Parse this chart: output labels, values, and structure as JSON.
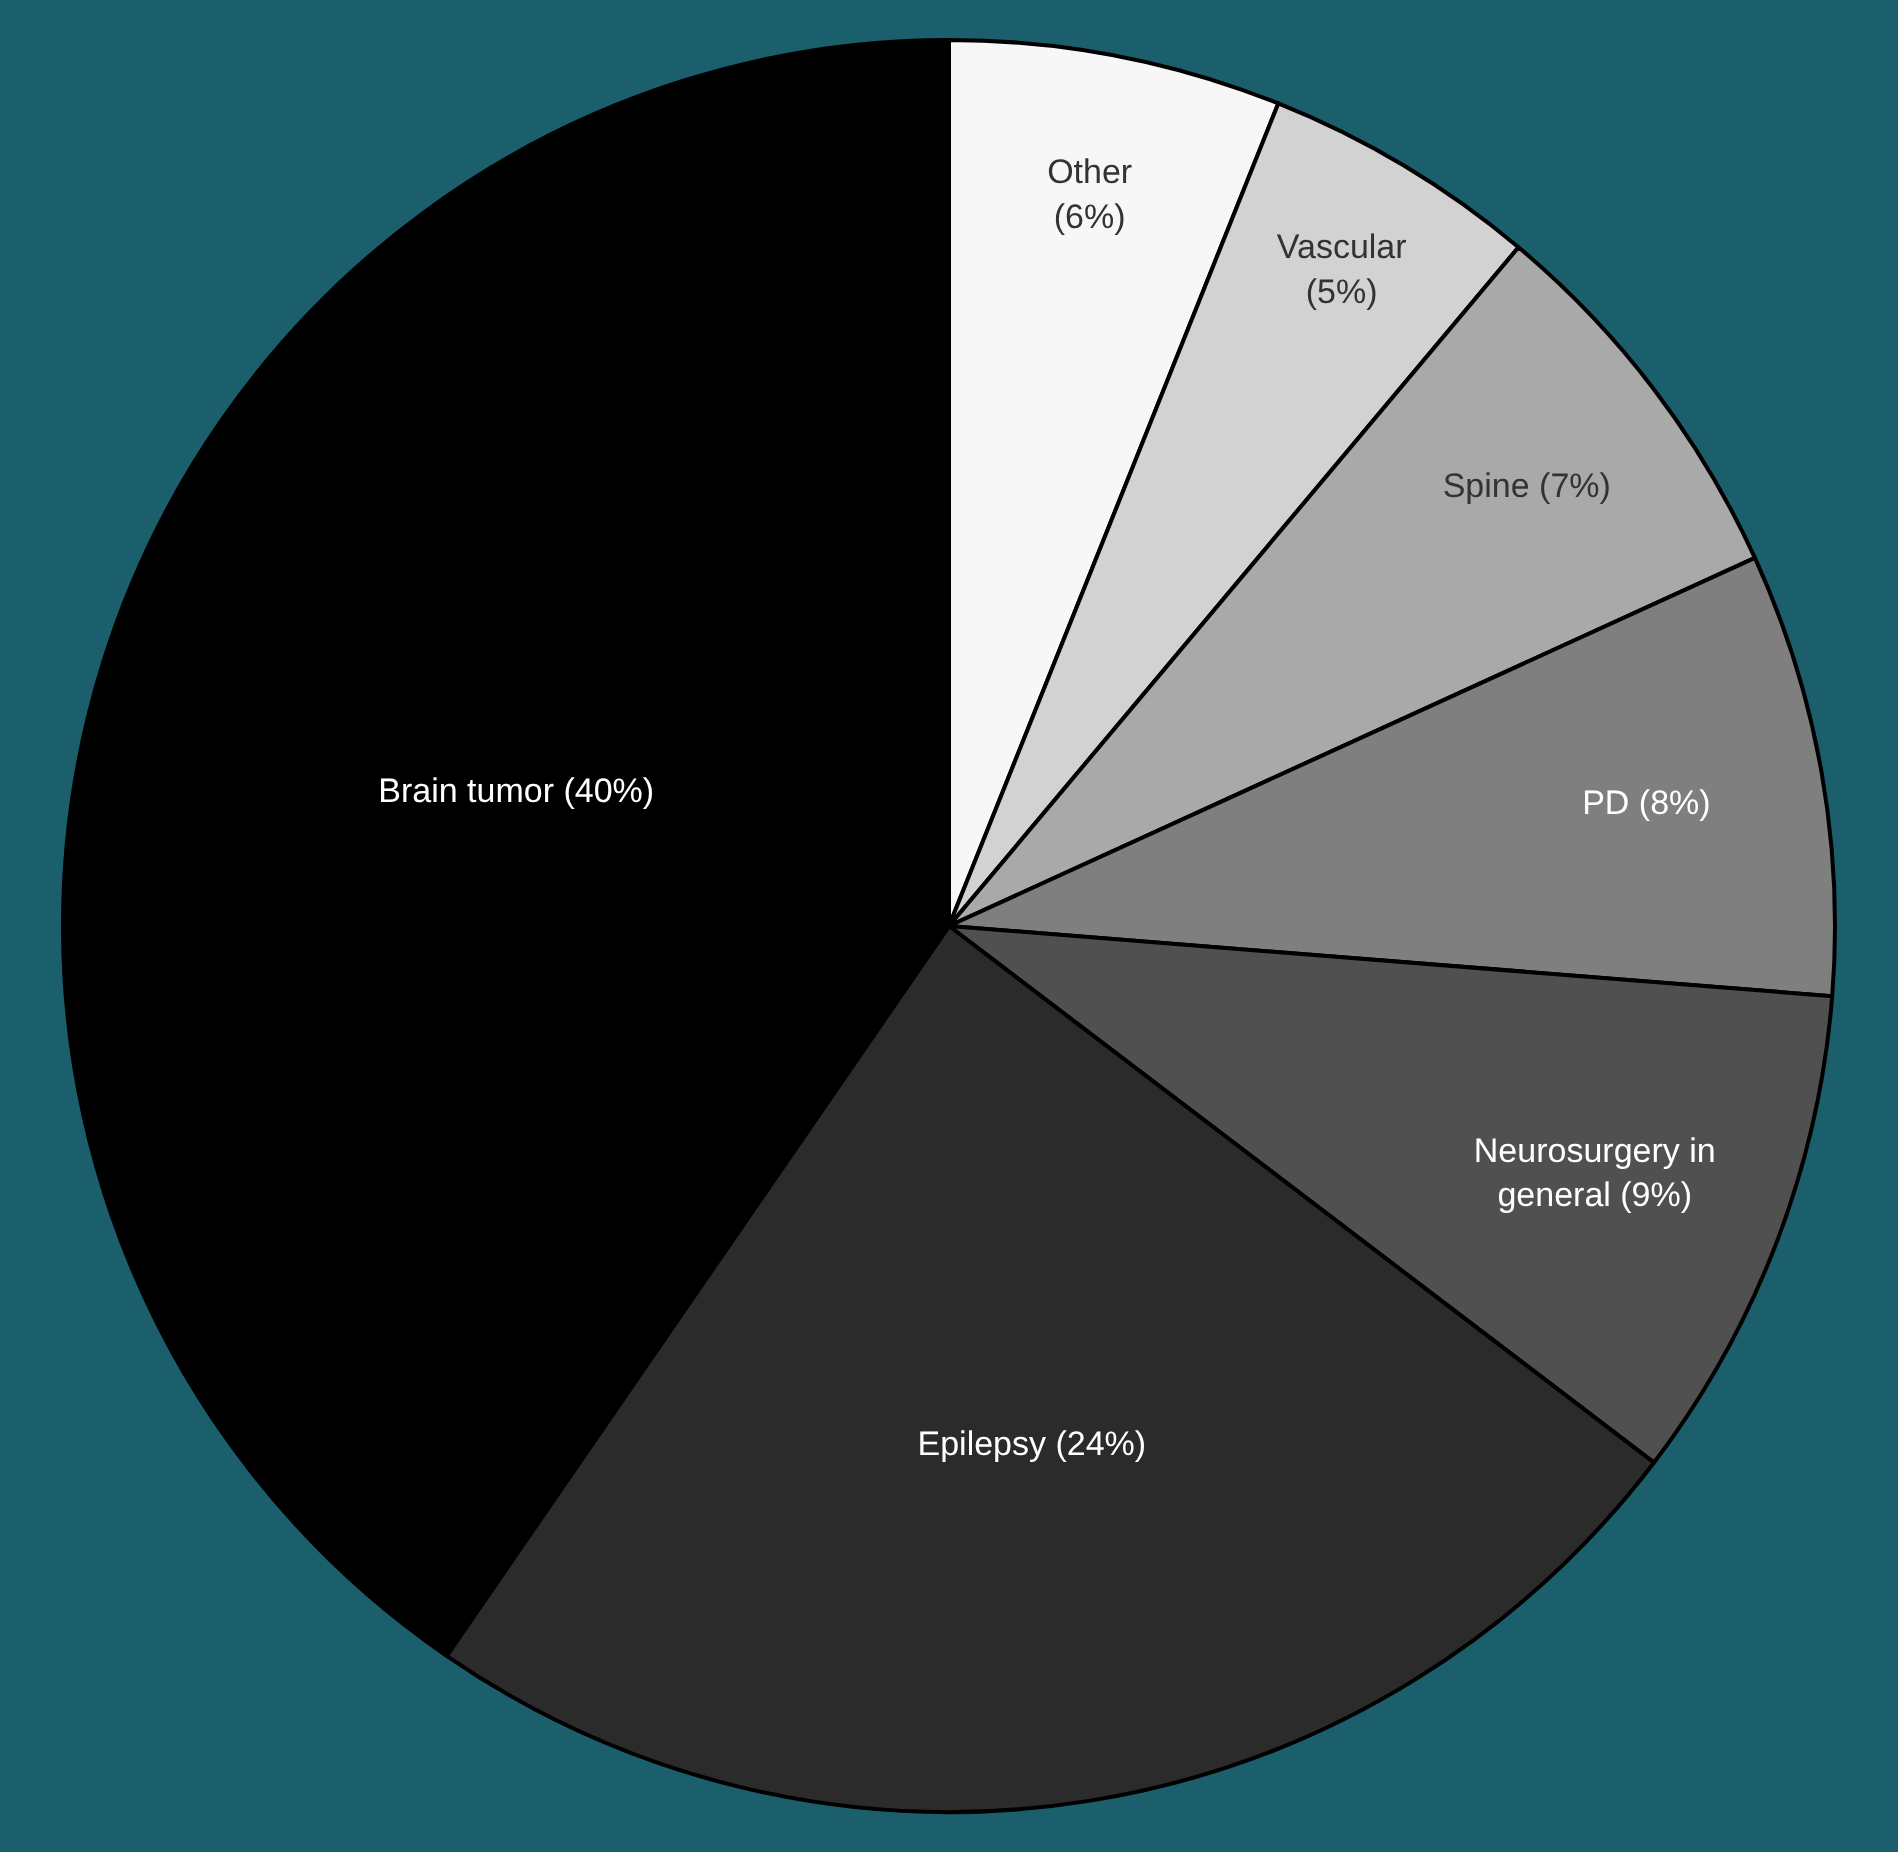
{
  "chart_data": {
    "type": "pie",
    "categories": [
      "Other",
      "Vascular",
      "Spine",
      "PD",
      "Neurosurgery in general",
      "Epilepsy",
      "Brain tumor"
    ],
    "values": [
      6,
      5,
      7,
      8,
      9,
      24,
      40
    ],
    "value_labels": [
      "(6%)",
      "(5%)",
      "(7%)",
      "(8%)",
      "(9%)",
      "(24%)",
      "(40%)"
    ],
    "colors": [
      "#f7f7f7",
      "#d2d2d2",
      "#a9a9a9",
      "#7f7f7f",
      "#505050",
      "#2b2b2b",
      "#000000"
    ],
    "legend": false
  }
}
